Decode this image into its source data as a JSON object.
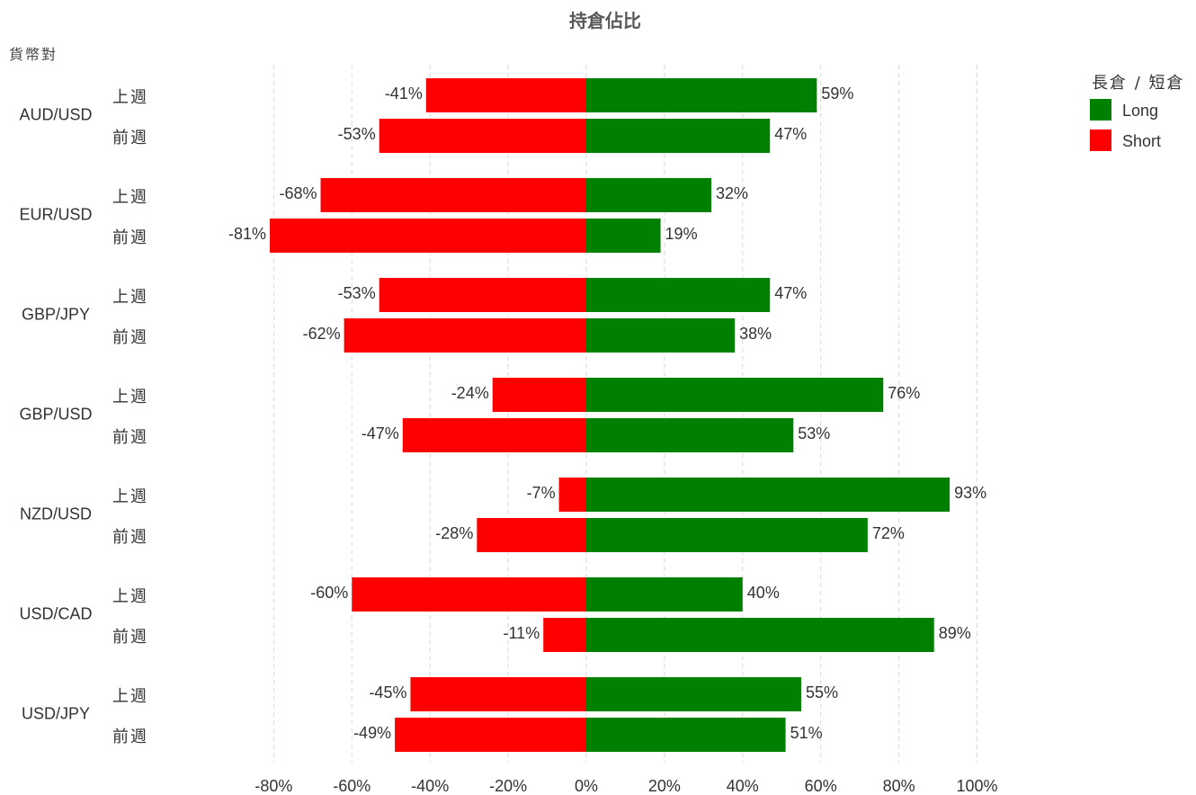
{
  "chart_data": {
    "type": "bar",
    "orientation": "horizontal",
    "stacked": "diverging",
    "title": "持倉佔比",
    "ylabel": "貨幣對",
    "xlim": [
      -80,
      100
    ],
    "x_ticks": [
      "-80%",
      "-60%",
      "-40%",
      "-20%",
      "0%",
      "20%",
      "40%",
      "60%",
      "80%",
      "100%"
    ],
    "x_tick_values": [
      -80,
      -60,
      -40,
      -20,
      0,
      20,
      40,
      60,
      80,
      100
    ],
    "grid": true,
    "legend": {
      "title": "長倉 / 短倉",
      "placement": "top-right",
      "items": [
        {
          "name": "Long",
          "color": "#008000"
        },
        {
          "name": "Short",
          "color": "#ff0000"
        }
      ]
    },
    "groups": [
      {
        "pair": "AUD/USD",
        "rows": [
          {
            "period": "上週",
            "short": -41,
            "long": 59,
            "short_label": "-41%",
            "long_label": "59%"
          },
          {
            "period": "前週",
            "short": -53,
            "long": 47,
            "short_label": "-53%",
            "long_label": "47%"
          }
        ]
      },
      {
        "pair": "EUR/USD",
        "rows": [
          {
            "period": "上週",
            "short": -68,
            "long": 32,
            "short_label": "-68%",
            "long_label": "32%"
          },
          {
            "period": "前週",
            "short": -81,
            "long": 19,
            "short_label": "-81%",
            "long_label": "19%"
          }
        ]
      },
      {
        "pair": "GBP/JPY",
        "rows": [
          {
            "period": "上週",
            "short": -53,
            "long": 47,
            "short_label": "-53%",
            "long_label": "47%"
          },
          {
            "period": "前週",
            "short": -62,
            "long": 38,
            "short_label": "-62%",
            "long_label": "38%"
          }
        ]
      },
      {
        "pair": "GBP/USD",
        "rows": [
          {
            "period": "上週",
            "short": -24,
            "long": 76,
            "short_label": "-24%",
            "long_label": "76%"
          },
          {
            "period": "前週",
            "short": -47,
            "long": 53,
            "short_label": "-47%",
            "long_label": "53%"
          }
        ]
      },
      {
        "pair": "NZD/USD",
        "rows": [
          {
            "period": "上週",
            "short": -7,
            "long": 93,
            "short_label": "-7%",
            "long_label": "93%"
          },
          {
            "period": "前週",
            "short": -28,
            "long": 72,
            "short_label": "-28%",
            "long_label": "72%"
          }
        ]
      },
      {
        "pair": "USD/CAD",
        "rows": [
          {
            "period": "上週",
            "short": -60,
            "long": 40,
            "short_label": "-60%",
            "long_label": "40%"
          },
          {
            "period": "前週",
            "short": -11,
            "long": 89,
            "short_label": "-11%",
            "long_label": "89%"
          }
        ]
      },
      {
        "pair": "USD/JPY",
        "rows": [
          {
            "period": "上週",
            "short": -45,
            "long": 55,
            "short_label": "-45%",
            "long_label": "55%"
          },
          {
            "period": "前週",
            "short": -49,
            "long": 51,
            "short_label": "-49%",
            "long_label": "51%"
          }
        ]
      }
    ]
  }
}
